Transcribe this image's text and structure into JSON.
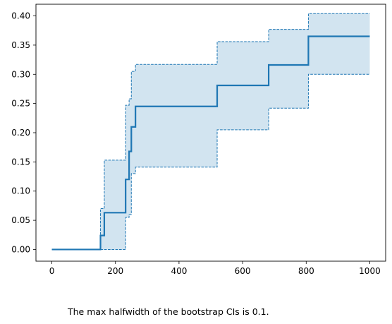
{
  "caption": "The max halfwidth of the bootstrap CIs is 0.1.",
  "chart_data": {
    "type": "line",
    "step": "post",
    "xlim": [
      -50,
      1050
    ],
    "ylim": [
      -0.02,
      0.42
    ],
    "xticks": [
      0,
      200,
      400,
      600,
      800,
      1000
    ],
    "xtick_labels": [
      "0",
      "200",
      "400",
      "600",
      "800",
      "1000"
    ],
    "yticks": [
      0.0,
      0.05,
      0.1,
      0.15,
      0.2,
      0.25,
      0.3,
      0.35,
      0.4
    ],
    "ytick_labels": [
      "0.00",
      "0.05",
      "0.10",
      "0.15",
      "0.20",
      "0.25",
      "0.30",
      "0.35",
      "0.40"
    ],
    "grid": false,
    "colors": {
      "line": "#1f77b4",
      "fill": "#1f77b4"
    },
    "series": [
      {
        "role": "estimate",
        "x": [
          0,
          153,
          165,
          232,
          243,
          250,
          263,
          520,
          682,
          807,
          1000
        ],
        "y": [
          0.0,
          0.024,
          0.063,
          0.12,
          0.168,
          0.21,
          0.245,
          0.281,
          0.316,
          0.365,
          0.365
        ]
      },
      {
        "role": "lower",
        "x": [
          0,
          232,
          243,
          250,
          263,
          520,
          682,
          807,
          1000
        ],
        "y": [
          0.0,
          0.055,
          0.06,
          0.13,
          0.141,
          0.205,
          0.242,
          0.3,
          0.3
        ]
      },
      {
        "role": "upper",
        "x": [
          0,
          153,
          165,
          232,
          243,
          250,
          263,
          520,
          682,
          807,
          1000
        ],
        "y": [
          0.0,
          0.07,
          0.153,
          0.247,
          0.258,
          0.305,
          0.317,
          0.356,
          0.377,
          0.404,
          0.404
        ]
      }
    ]
  }
}
